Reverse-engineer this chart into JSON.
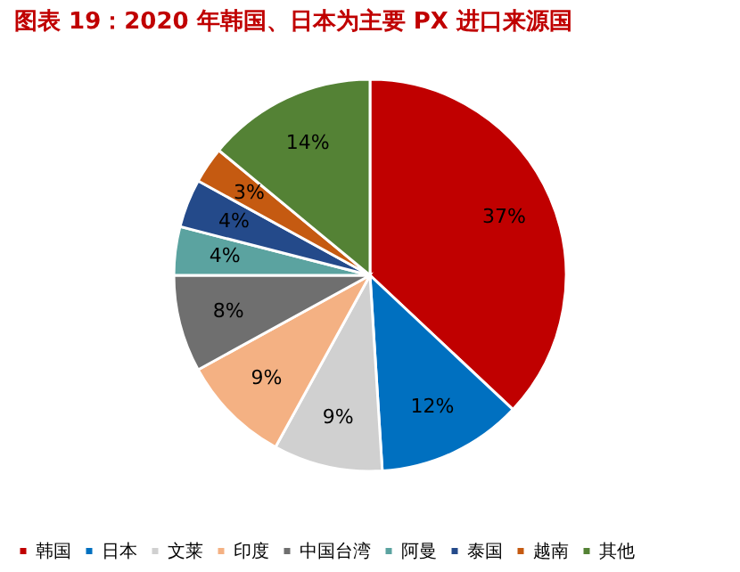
{
  "chart_data": {
    "type": "pie",
    "title": "图表 19：2020 年韩国、日本为主要 PX 进口来源国",
    "categories": [
      "韩国",
      "日本",
      "文莱",
      "印度",
      "中国台湾",
      "阿曼",
      "泰国",
      "越南",
      "其他"
    ],
    "values": [
      37,
      12,
      9,
      9,
      8,
      4,
      4,
      3,
      14
    ],
    "colors": [
      "#c00000",
      "#0070c0",
      "#d0d0d0",
      "#f4b183",
      "#6f6f6f",
      "#5ba3a0",
      "#244a8a",
      "#c55a11",
      "#548235"
    ],
    "value_labels": [
      "37%",
      "12%",
      "9%",
      "9%",
      "8%",
      "4%",
      "4%",
      "3%",
      "14%"
    ],
    "legend": "bottom"
  }
}
